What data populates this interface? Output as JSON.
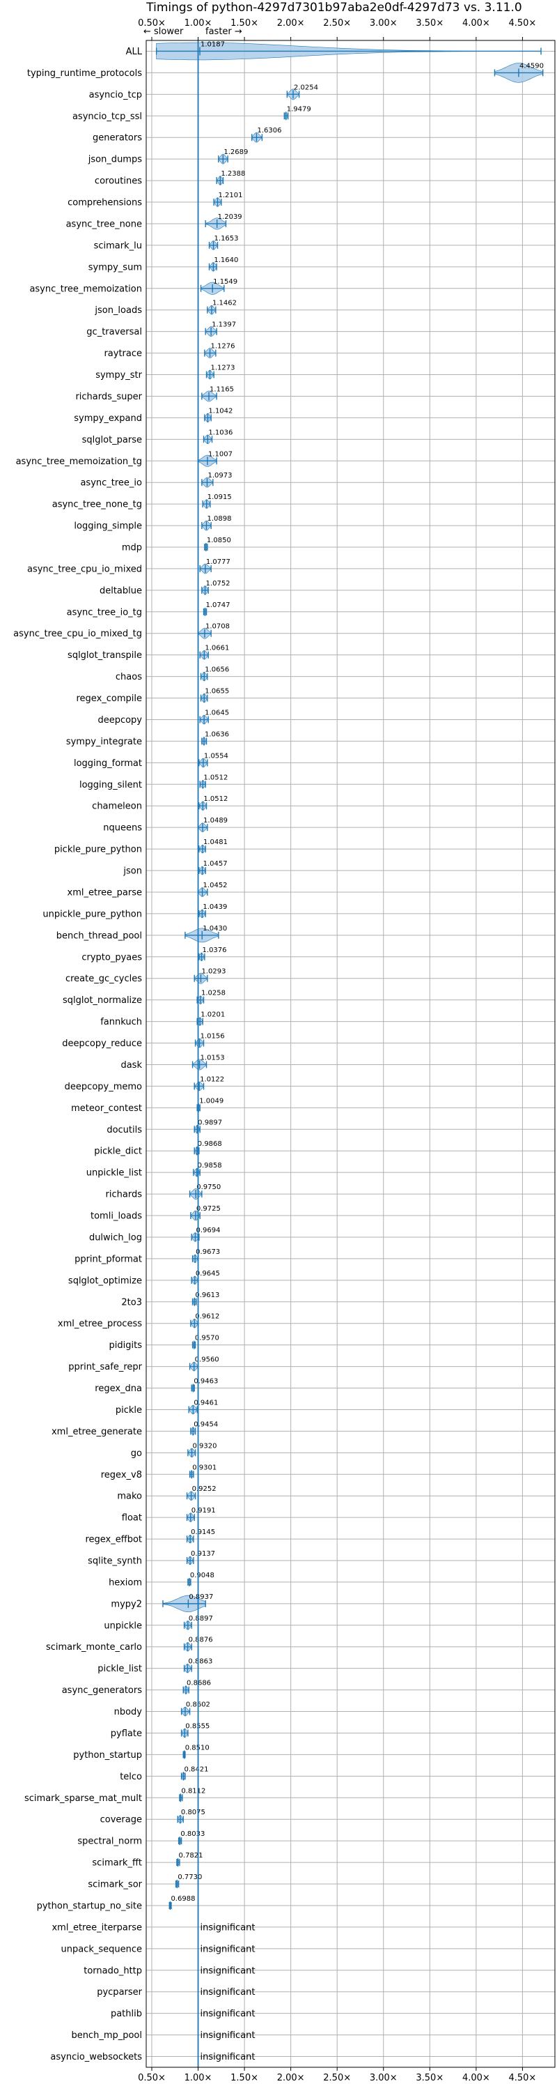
{
  "chart_data": {
    "type": "violin",
    "title": "Timings of python-4297d7301b97aba2e0df-4297d73 vs. 3.11.0",
    "slower_label": "← slower",
    "faster_label": "faster →",
    "xlim": [
      0.44,
      4.85
    ],
    "x_ticks": [
      0.5,
      1.0,
      1.5,
      2.0,
      2.5,
      3.0,
      3.5,
      4.0,
      4.5
    ],
    "x_tick_labels": [
      "0.50×",
      "1.00×",
      "1.50×",
      "2.00×",
      "2.50×",
      "3.00×",
      "3.50×",
      "4.00×",
      "4.50×"
    ],
    "reference_x": 1.0,
    "grid": true,
    "insignificant_text": "insignificant",
    "colors": {
      "violin": "#aacde9",
      "edge": "#1f77b4",
      "reference": "#1f77b4",
      "grid": "#b0b0b0",
      "median": "#d62728"
    },
    "benchmarks": [
      {
        "name": "ALL",
        "value": 1.0187,
        "label": "1.0187",
        "lo": 0.55,
        "hi": 4.7,
        "spread": 0.14
      },
      {
        "name": "typing_runtime_protocols",
        "value": 4.459,
        "label": "4.4590",
        "lo": 4.2,
        "hi": 4.72,
        "spread": 0.18
      },
      {
        "name": "asyncio_tcp",
        "value": 2.0254,
        "label": "2.0254",
        "lo": 1.96,
        "hi": 2.09,
        "spread": 0.06
      },
      {
        "name": "asyncio_tcp_ssl",
        "value": 1.9479,
        "label": "1.9479",
        "lo": 1.93,
        "hi": 1.97,
        "spread": 0.02
      },
      {
        "name": "generators",
        "value": 1.6306,
        "label": "1.6306",
        "lo": 1.58,
        "hi": 1.69,
        "spread": 0.05
      },
      {
        "name": "json_dumps",
        "value": 1.2689,
        "label": "1.2689",
        "lo": 1.22,
        "hi": 1.32,
        "spread": 0.05
      },
      {
        "name": "coroutines",
        "value": 1.2388,
        "label": "1.2388",
        "lo": 1.2,
        "hi": 1.27,
        "spread": 0.04
      },
      {
        "name": "comprehensions",
        "value": 1.2101,
        "label": "1.2101",
        "lo": 1.17,
        "hi": 1.25,
        "spread": 0.04
      },
      {
        "name": "async_tree_none",
        "value": 1.2039,
        "label": "1.2039",
        "lo": 1.08,
        "hi": 1.3,
        "spread": 0.07
      },
      {
        "name": "scimark_lu",
        "value": 1.1653,
        "label": "1.1653",
        "lo": 1.12,
        "hi": 1.21,
        "spread": 0.04
      },
      {
        "name": "sympy_sum",
        "value": 1.164,
        "label": "1.1640",
        "lo": 1.12,
        "hi": 1.2,
        "spread": 0.04
      },
      {
        "name": "async_tree_memoization",
        "value": 1.1549,
        "label": "1.1549",
        "lo": 1.03,
        "hi": 1.28,
        "spread": 0.08
      },
      {
        "name": "json_loads",
        "value": 1.1462,
        "label": "1.1462",
        "lo": 1.1,
        "hi": 1.19,
        "spread": 0.04
      },
      {
        "name": "gc_traversal",
        "value": 1.1397,
        "label": "1.1397",
        "lo": 1.08,
        "hi": 1.2,
        "spread": 0.05
      },
      {
        "name": "raytrace",
        "value": 1.1276,
        "label": "1.1276",
        "lo": 1.07,
        "hi": 1.19,
        "spread": 0.05
      },
      {
        "name": "sympy_str",
        "value": 1.1273,
        "label": "1.1273",
        "lo": 1.09,
        "hi": 1.17,
        "spread": 0.04
      },
      {
        "name": "richards_super",
        "value": 1.1165,
        "label": "1.1165",
        "lo": 1.04,
        "hi": 1.2,
        "spread": 0.06
      },
      {
        "name": "sympy_expand",
        "value": 1.1042,
        "label": "1.1042",
        "lo": 1.07,
        "hi": 1.14,
        "spread": 0.04
      },
      {
        "name": "sqlglot_parse",
        "value": 1.1036,
        "label": "1.1036",
        "lo": 1.06,
        "hi": 1.15,
        "spread": 0.04
      },
      {
        "name": "async_tree_memoization_tg",
        "value": 1.1007,
        "label": "1.1007",
        "lo": 1.0,
        "hi": 1.2,
        "spread": 0.07
      },
      {
        "name": "async_tree_io",
        "value": 1.0973,
        "label": "1.0973",
        "lo": 1.04,
        "hi": 1.16,
        "spread": 0.05
      },
      {
        "name": "async_tree_none_tg",
        "value": 1.0915,
        "label": "1.0915",
        "lo": 1.05,
        "hi": 1.13,
        "spread": 0.04
      },
      {
        "name": "logging_simple",
        "value": 1.0898,
        "label": "1.0898",
        "lo": 1.04,
        "hi": 1.14,
        "spread": 0.05
      },
      {
        "name": "mdp",
        "value": 1.085,
        "label": "1.0850",
        "lo": 1.07,
        "hi": 1.1,
        "spread": 0.02
      },
      {
        "name": "async_tree_cpu_io_mixed",
        "value": 1.0777,
        "label": "1.0777",
        "lo": 1.02,
        "hi": 1.14,
        "spread": 0.05
      },
      {
        "name": "deltablue",
        "value": 1.0752,
        "label": "1.0752",
        "lo": 1.04,
        "hi": 1.11,
        "spread": 0.04
      },
      {
        "name": "async_tree_io_tg",
        "value": 1.0747,
        "label": "1.0747",
        "lo": 1.06,
        "hi": 1.09,
        "spread": 0.02
      },
      {
        "name": "async_tree_cpu_io_mixed_tg",
        "value": 1.0708,
        "label": "1.0708",
        "lo": 1.0,
        "hi": 1.14,
        "spread": 0.06
      },
      {
        "name": "sqlglot_transpile",
        "value": 1.0661,
        "label": "1.0661",
        "lo": 1.02,
        "hi": 1.11,
        "spread": 0.04
      },
      {
        "name": "chaos",
        "value": 1.0656,
        "label": "1.0656",
        "lo": 1.03,
        "hi": 1.1,
        "spread": 0.04
      },
      {
        "name": "regex_compile",
        "value": 1.0655,
        "label": "1.0655",
        "lo": 1.03,
        "hi": 1.1,
        "spread": 0.04
      },
      {
        "name": "deepcopy",
        "value": 1.0645,
        "label": "1.0645",
        "lo": 1.02,
        "hi": 1.11,
        "spread": 0.04
      },
      {
        "name": "sympy_integrate",
        "value": 1.0636,
        "label": "1.0636",
        "lo": 1.04,
        "hi": 1.09,
        "spread": 0.03
      },
      {
        "name": "logging_format",
        "value": 1.0554,
        "label": "1.0554",
        "lo": 1.01,
        "hi": 1.1,
        "spread": 0.04
      },
      {
        "name": "logging_silent",
        "value": 1.0512,
        "label": "1.0512",
        "lo": 1.02,
        "hi": 1.08,
        "spread": 0.03
      },
      {
        "name": "chameleon",
        "value": 1.0512,
        "label": "1.0512",
        "lo": 1.01,
        "hi": 1.09,
        "spread": 0.04
      },
      {
        "name": "nqueens",
        "value": 1.0489,
        "label": "1.0489",
        "lo": 1.0,
        "hi": 1.1,
        "spread": 0.04
      },
      {
        "name": "pickle_pure_python",
        "value": 1.0481,
        "label": "1.0481",
        "lo": 1.01,
        "hi": 1.08,
        "spread": 0.03
      },
      {
        "name": "json",
        "value": 1.0457,
        "label": "1.0457",
        "lo": 1.01,
        "hi": 1.08,
        "spread": 0.03
      },
      {
        "name": "xml_etree_parse",
        "value": 1.0452,
        "label": "1.0452",
        "lo": 1.0,
        "hi": 1.1,
        "spread": 0.04
      },
      {
        "name": "unpickle_pure_python",
        "value": 1.0439,
        "label": "1.0439",
        "lo": 1.01,
        "hi": 1.08,
        "spread": 0.03
      },
      {
        "name": "bench_thread_pool",
        "value": 1.043,
        "label": "1.0430",
        "lo": 0.86,
        "hi": 1.22,
        "spread": 0.1
      },
      {
        "name": "crypto_pyaes",
        "value": 1.0376,
        "label": "1.0376",
        "lo": 1.01,
        "hi": 1.07,
        "spread": 0.03
      },
      {
        "name": "create_gc_cycles",
        "value": 1.0293,
        "label": "1.0293",
        "lo": 0.96,
        "hi": 1.1,
        "spread": 0.06
      },
      {
        "name": "sqlglot_normalize",
        "value": 1.0258,
        "label": "1.0258",
        "lo": 0.99,
        "hi": 1.06,
        "spread": 0.03
      },
      {
        "name": "fannkuch",
        "value": 1.0201,
        "label": "1.0201",
        "lo": 0.99,
        "hi": 1.05,
        "spread": 0.03
      },
      {
        "name": "deepcopy_reduce",
        "value": 1.0156,
        "label": "1.0156",
        "lo": 0.97,
        "hi": 1.06,
        "spread": 0.04
      },
      {
        "name": "dask",
        "value": 1.0153,
        "label": "1.0153",
        "lo": 0.94,
        "hi": 1.09,
        "spread": 0.06
      },
      {
        "name": "deepcopy_memo",
        "value": 1.0122,
        "label": "1.0122",
        "lo": 0.96,
        "hi": 1.06,
        "spread": 0.04
      },
      {
        "name": "meteor_contest",
        "value": 1.0049,
        "label": "1.0049",
        "lo": 0.99,
        "hi": 1.02,
        "spread": 0.02
      },
      {
        "name": "docutils",
        "value": 0.9897,
        "label": "0.9897",
        "lo": 0.96,
        "hi": 1.02,
        "spread": 0.03
      },
      {
        "name": "pickle_dict",
        "value": 0.9868,
        "label": "0.9868",
        "lo": 0.96,
        "hi": 1.01,
        "spread": 0.03
      },
      {
        "name": "unpickle_list",
        "value": 0.9858,
        "label": "0.9858",
        "lo": 0.95,
        "hi": 1.02,
        "spread": 0.03
      },
      {
        "name": "richards",
        "value": 0.975,
        "label": "0.9750",
        "lo": 0.91,
        "hi": 1.04,
        "spread": 0.06
      },
      {
        "name": "tomli_loads",
        "value": 0.9725,
        "label": "0.9725",
        "lo": 0.92,
        "hi": 1.02,
        "spread": 0.05
      },
      {
        "name": "dulwich_log",
        "value": 0.9694,
        "label": "0.9694",
        "lo": 0.93,
        "hi": 1.01,
        "spread": 0.04
      },
      {
        "name": "pprint_pformat",
        "value": 0.9673,
        "label": "0.9673",
        "lo": 0.94,
        "hi": 1.0,
        "spread": 0.03
      },
      {
        "name": "sqlglot_optimize",
        "value": 0.9645,
        "label": "0.9645",
        "lo": 0.93,
        "hi": 1.0,
        "spread": 0.03
      },
      {
        "name": "2to3",
        "value": 0.9613,
        "label": "0.9613",
        "lo": 0.94,
        "hi": 0.98,
        "spread": 0.02
      },
      {
        "name": "xml_etree_process",
        "value": 0.9612,
        "label": "0.9612",
        "lo": 0.92,
        "hi": 1.0,
        "spread": 0.04
      },
      {
        "name": "pidigits",
        "value": 0.957,
        "label": "0.9570",
        "lo": 0.94,
        "hi": 0.97,
        "spread": 0.02
      },
      {
        "name": "pprint_safe_repr",
        "value": 0.956,
        "label": "0.9560",
        "lo": 0.91,
        "hi": 1.0,
        "spread": 0.04
      },
      {
        "name": "regex_dna",
        "value": 0.9463,
        "label": "0.9463",
        "lo": 0.93,
        "hi": 0.96,
        "spread": 0.02
      },
      {
        "name": "pickle",
        "value": 0.9461,
        "label": "0.9461",
        "lo": 0.9,
        "hi": 0.99,
        "spread": 0.04
      },
      {
        "name": "xml_etree_generate",
        "value": 0.9454,
        "label": "0.9454",
        "lo": 0.92,
        "hi": 0.97,
        "spread": 0.03
      },
      {
        "name": "go",
        "value": 0.932,
        "label": "0.9320",
        "lo": 0.89,
        "hi": 0.97,
        "spread": 0.04
      },
      {
        "name": "regex_v8",
        "value": 0.9301,
        "label": "0.9301",
        "lo": 0.91,
        "hi": 0.95,
        "spread": 0.02
      },
      {
        "name": "mako",
        "value": 0.9252,
        "label": "0.9252",
        "lo": 0.88,
        "hi": 0.97,
        "spread": 0.04
      },
      {
        "name": "float",
        "value": 0.9191,
        "label": "0.9191",
        "lo": 0.88,
        "hi": 0.96,
        "spread": 0.04
      },
      {
        "name": "regex_effbot",
        "value": 0.9145,
        "label": "0.9145",
        "lo": 0.88,
        "hi": 0.95,
        "spread": 0.03
      },
      {
        "name": "sqlite_synth",
        "value": 0.9137,
        "label": "0.9137",
        "lo": 0.88,
        "hi": 0.95,
        "spread": 0.03
      },
      {
        "name": "hexiom",
        "value": 0.9048,
        "label": "0.9048",
        "lo": 0.89,
        "hi": 0.92,
        "spread": 0.02
      },
      {
        "name": "mypy2",
        "value": 0.8937,
        "label": "0.8937",
        "lo": 0.62,
        "hi": 1.08,
        "spread": 0.13
      },
      {
        "name": "unpickle",
        "value": 0.8897,
        "label": "0.8897",
        "lo": 0.85,
        "hi": 0.93,
        "spread": 0.04
      },
      {
        "name": "scimark_monte_carlo",
        "value": 0.8876,
        "label": "0.8876",
        "lo": 0.85,
        "hi": 0.93,
        "spread": 0.04
      },
      {
        "name": "pickle_list",
        "value": 0.8863,
        "label": "0.8863",
        "lo": 0.85,
        "hi": 0.93,
        "spread": 0.04
      },
      {
        "name": "async_generators",
        "value": 0.8686,
        "label": "0.8686",
        "lo": 0.84,
        "hi": 0.9,
        "spread": 0.03
      },
      {
        "name": "nbody",
        "value": 0.8602,
        "label": "0.8602",
        "lo": 0.82,
        "hi": 0.91,
        "spread": 0.04
      },
      {
        "name": "pyflate",
        "value": 0.8555,
        "label": "0.8555",
        "lo": 0.82,
        "hi": 0.89,
        "spread": 0.04
      },
      {
        "name": "python_startup",
        "value": 0.851,
        "label": "0.8510",
        "lo": 0.84,
        "hi": 0.86,
        "spread": 0.02
      },
      {
        "name": "telco",
        "value": 0.8421,
        "label": "0.8421",
        "lo": 0.82,
        "hi": 0.86,
        "spread": 0.03
      },
      {
        "name": "scimark_sparse_mat_mult",
        "value": 0.8112,
        "label": "0.8112",
        "lo": 0.8,
        "hi": 0.83,
        "spread": 0.02
      },
      {
        "name": "coverage",
        "value": 0.8075,
        "label": "0.8075",
        "lo": 0.78,
        "hi": 0.84,
        "spread": 0.03
      },
      {
        "name": "spectral_norm",
        "value": 0.8033,
        "label": "0.8033",
        "lo": 0.79,
        "hi": 0.82,
        "spread": 0.02
      },
      {
        "name": "scimark_fft",
        "value": 0.7821,
        "label": "0.7821",
        "lo": 0.77,
        "hi": 0.8,
        "spread": 0.02
      },
      {
        "name": "scimark_sor",
        "value": 0.773,
        "label": "0.7730",
        "lo": 0.76,
        "hi": 0.79,
        "spread": 0.02
      },
      {
        "name": "python_startup_no_site",
        "value": 0.6988,
        "label": "0.6988",
        "lo": 0.69,
        "hi": 0.71,
        "spread": 0.02
      },
      {
        "name": "xml_etree_iterparse",
        "value": null,
        "label": ""
      },
      {
        "name": "unpack_sequence",
        "value": null,
        "label": ""
      },
      {
        "name": "tornado_http",
        "value": null,
        "label": ""
      },
      {
        "name": "pycparser",
        "value": null,
        "label": ""
      },
      {
        "name": "pathlib",
        "value": null,
        "label": ""
      },
      {
        "name": "bench_mp_pool",
        "value": null,
        "label": ""
      },
      {
        "name": "asyncio_websockets",
        "value": null,
        "label": ""
      }
    ]
  }
}
